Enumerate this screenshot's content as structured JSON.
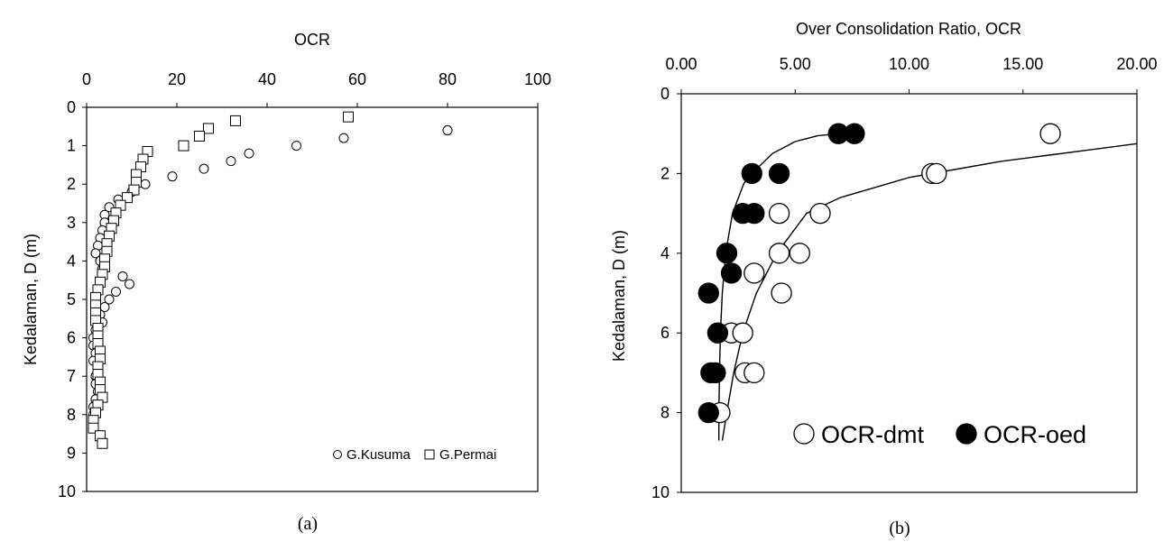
{
  "chart_data": [
    {
      "id": "a",
      "type": "scatter",
      "caption": "(a)",
      "xlabel": "OCR",
      "ylabel": "Kedalaman, D (m)",
      "xlim": [
        0,
        100
      ],
      "ylim": [
        0,
        10
      ],
      "x_axis_position": "top",
      "y_reversed": true,
      "xticks": [
        0,
        20,
        40,
        60,
        80,
        100
      ],
      "yticks": [
        0,
        1,
        2,
        3,
        4,
        5,
        6,
        7,
        8,
        9,
        10
      ],
      "grid": false,
      "legend": "bottom-right",
      "series": [
        {
          "name": "G.Kusuma",
          "marker": "circle",
          "points": [
            {
              "x": 80,
              "y": 0.6
            },
            {
              "x": 57,
              "y": 0.8
            },
            {
              "x": 46.5,
              "y": 1.0
            },
            {
              "x": 36,
              "y": 1.2
            },
            {
              "x": 32,
              "y": 1.4
            },
            {
              "x": 26,
              "y": 1.6
            },
            {
              "x": 19,
              "y": 1.8
            },
            {
              "x": 13,
              "y": 2.0
            },
            {
              "x": 10,
              "y": 2.2
            },
            {
              "x": 7,
              "y": 2.4
            },
            {
              "x": 5,
              "y": 2.6
            },
            {
              "x": 4,
              "y": 2.8
            },
            {
              "x": 4,
              "y": 3.0
            },
            {
              "x": 3.5,
              "y": 3.2
            },
            {
              "x": 3,
              "y": 3.4
            },
            {
              "x": 2.5,
              "y": 3.6
            },
            {
              "x": 2,
              "y": 3.8
            },
            {
              "x": 3,
              "y": 4.0
            },
            {
              "x": 3.5,
              "y": 4.2
            },
            {
              "x": 8,
              "y": 4.4
            },
            {
              "x": 9.5,
              "y": 4.6
            },
            {
              "x": 6.5,
              "y": 4.8
            },
            {
              "x": 5,
              "y": 5.0
            },
            {
              "x": 4,
              "y": 5.2
            },
            {
              "x": 3,
              "y": 5.4
            },
            {
              "x": 3.5,
              "y": 5.6
            },
            {
              "x": 2,
              "y": 5.8
            },
            {
              "x": 1.5,
              "y": 6.0
            },
            {
              "x": 1.5,
              "y": 6.2
            },
            {
              "x": 2,
              "y": 6.4
            },
            {
              "x": 1.5,
              "y": 6.6
            },
            {
              "x": 2.5,
              "y": 6.8
            },
            {
              "x": 2,
              "y": 7.0
            },
            {
              "x": 2,
              "y": 7.2
            },
            {
              "x": 2.5,
              "y": 7.4
            },
            {
              "x": 2,
              "y": 7.6
            },
            {
              "x": 1.5,
              "y": 7.8
            },
            {
              "x": 1.5,
              "y": 8.0
            },
            {
              "x": 1.5,
              "y": 8.2
            }
          ]
        },
        {
          "name": "G.Permai",
          "marker": "square",
          "points": [
            {
              "x": 58,
              "y": 0.25
            },
            {
              "x": 33,
              "y": 0.35
            },
            {
              "x": 27,
              "y": 0.55
            },
            {
              "x": 25,
              "y": 0.75
            },
            {
              "x": 21.5,
              "y": 1.0
            },
            {
              "x": 13.5,
              "y": 1.15
            },
            {
              "x": 12.5,
              "y": 1.35
            },
            {
              "x": 12,
              "y": 1.55
            },
            {
              "x": 11,
              "y": 1.75
            },
            {
              "x": 11,
              "y": 1.95
            },
            {
              "x": 10.5,
              "y": 2.15
            },
            {
              "x": 9,
              "y": 2.35
            },
            {
              "x": 7.5,
              "y": 2.55
            },
            {
              "x": 6.5,
              "y": 2.75
            },
            {
              "x": 6,
              "y": 2.95
            },
            {
              "x": 5.5,
              "y": 3.15
            },
            {
              "x": 5,
              "y": 3.35
            },
            {
              "x": 4.5,
              "y": 3.55
            },
            {
              "x": 4.5,
              "y": 3.75
            },
            {
              "x": 4,
              "y": 3.95
            },
            {
              "x": 4,
              "y": 4.15
            },
            {
              "x": 3.5,
              "y": 4.35
            },
            {
              "x": 3,
              "y": 4.55
            },
            {
              "x": 2.5,
              "y": 4.75
            },
            {
              "x": 2,
              "y": 4.95
            },
            {
              "x": 2,
              "y": 5.15
            },
            {
              "x": 2,
              "y": 5.35
            },
            {
              "x": 2,
              "y": 5.55
            },
            {
              "x": 2.5,
              "y": 5.75
            },
            {
              "x": 2.5,
              "y": 5.95
            },
            {
              "x": 2.5,
              "y": 6.15
            },
            {
              "x": 3,
              "y": 6.35
            },
            {
              "x": 3,
              "y": 6.55
            },
            {
              "x": 2.5,
              "y": 6.75
            },
            {
              "x": 2.5,
              "y": 6.95
            },
            {
              "x": 3,
              "y": 7.15
            },
            {
              "x": 3,
              "y": 7.35
            },
            {
              "x": 3.5,
              "y": 7.55
            },
            {
              "x": 2.5,
              "y": 7.75
            },
            {
              "x": 2,
              "y": 7.95
            },
            {
              "x": 1.5,
              "y": 8.15
            },
            {
              "x": 1.5,
              "y": 8.35
            },
            {
              "x": 3,
              "y": 8.55
            },
            {
              "x": 3.5,
              "y": 8.75
            }
          ]
        }
      ]
    },
    {
      "id": "b",
      "type": "scatter",
      "caption": "(b)",
      "xlabel": "Over Consolidation Ratio, OCR",
      "ylabel": "Kedalaman, D (m)",
      "xlim": [
        0,
        20
      ],
      "ylim": [
        0,
        10
      ],
      "x_axis_position": "top",
      "y_reversed": true,
      "xticks": [
        "0.00",
        "5.00",
        "10.00",
        "15.00",
        "20.00"
      ],
      "yticks": [
        0,
        2,
        4,
        6,
        8,
        10
      ],
      "grid": false,
      "legend": "bottom-right",
      "series": [
        {
          "name": "OCR-dmt",
          "marker": "circle-open",
          "points": [
            {
              "x": 16.2,
              "y": 1.0
            },
            {
              "x": 11.0,
              "y": 2.0
            },
            {
              "x": 11.2,
              "y": 2.0
            },
            {
              "x": 4.3,
              "y": 3.0
            },
            {
              "x": 6.1,
              "y": 3.0
            },
            {
              "x": 4.3,
              "y": 4.0
            },
            {
              "x": 5.2,
              "y": 4.0
            },
            {
              "x": 3.2,
              "y": 4.5
            },
            {
              "x": 4.4,
              "y": 5.0
            },
            {
              "x": 2.2,
              "y": 6.0
            },
            {
              "x": 2.7,
              "y": 6.0
            },
            {
              "x": 2.8,
              "y": 7.0
            },
            {
              "x": 3.2,
              "y": 7.0
            },
            {
              "x": 1.7,
              "y": 8.0
            }
          ]
        },
        {
          "name": "OCR-oed",
          "marker": "circle-filled",
          "points": [
            {
              "x": 6.9,
              "y": 1.0
            },
            {
              "x": 7.6,
              "y": 1.0
            },
            {
              "x": 3.1,
              "y": 2.0
            },
            {
              "x": 4.3,
              "y": 2.0
            },
            {
              "x": 2.7,
              "y": 3.0
            },
            {
              "x": 3.2,
              "y": 3.0
            },
            {
              "x": 2.0,
              "y": 4.0
            },
            {
              "x": 2.2,
              "y": 4.5
            },
            {
              "x": 1.2,
              "y": 5.0
            },
            {
              "x": 1.6,
              "y": 6.0
            },
            {
              "x": 1.3,
              "y": 7.0
            },
            {
              "x": 1.5,
              "y": 7.0
            },
            {
              "x": 1.2,
              "y": 8.0
            }
          ]
        }
      ],
      "trend_lines": [
        {
          "series": "OCR-oed",
          "points": [
            {
              "x": 1.65,
              "y": 8.7
            },
            {
              "x": 1.65,
              "y": 8.0
            },
            {
              "x": 1.68,
              "y": 7.0
            },
            {
              "x": 1.72,
              "y": 6.0
            },
            {
              "x": 1.8,
              "y": 5.0
            },
            {
              "x": 1.95,
              "y": 4.0
            },
            {
              "x": 2.25,
              "y": 3.0
            },
            {
              "x": 2.75,
              "y": 2.25
            },
            {
              "x": 3.1,
              "y": 2.0
            },
            {
              "x": 4.0,
              "y": 1.5
            },
            {
              "x": 5.0,
              "y": 1.2
            },
            {
              "x": 6.0,
              "y": 1.05
            },
            {
              "x": 7.0,
              "y": 1.0
            }
          ]
        },
        {
          "series": "OCR-dmt",
          "points": [
            {
              "x": 1.8,
              "y": 8.7
            },
            {
              "x": 2.0,
              "y": 8.0
            },
            {
              "x": 2.3,
              "y": 7.0
            },
            {
              "x": 2.7,
              "y": 6.0
            },
            {
              "x": 3.3,
              "y": 5.0
            },
            {
              "x": 4.2,
              "y": 4.0
            },
            {
              "x": 5.5,
              "y": 3.0
            },
            {
              "x": 7.0,
              "y": 2.6
            },
            {
              "x": 8.5,
              "y": 2.35
            },
            {
              "x": 10.0,
              "y": 2.1
            },
            {
              "x": 12.0,
              "y": 1.9
            },
            {
              "x": 14.0,
              "y": 1.7
            },
            {
              "x": 16.0,
              "y": 1.55
            },
            {
              "x": 18.0,
              "y": 1.4
            },
            {
              "x": 20.0,
              "y": 1.25
            }
          ]
        }
      ]
    }
  ]
}
